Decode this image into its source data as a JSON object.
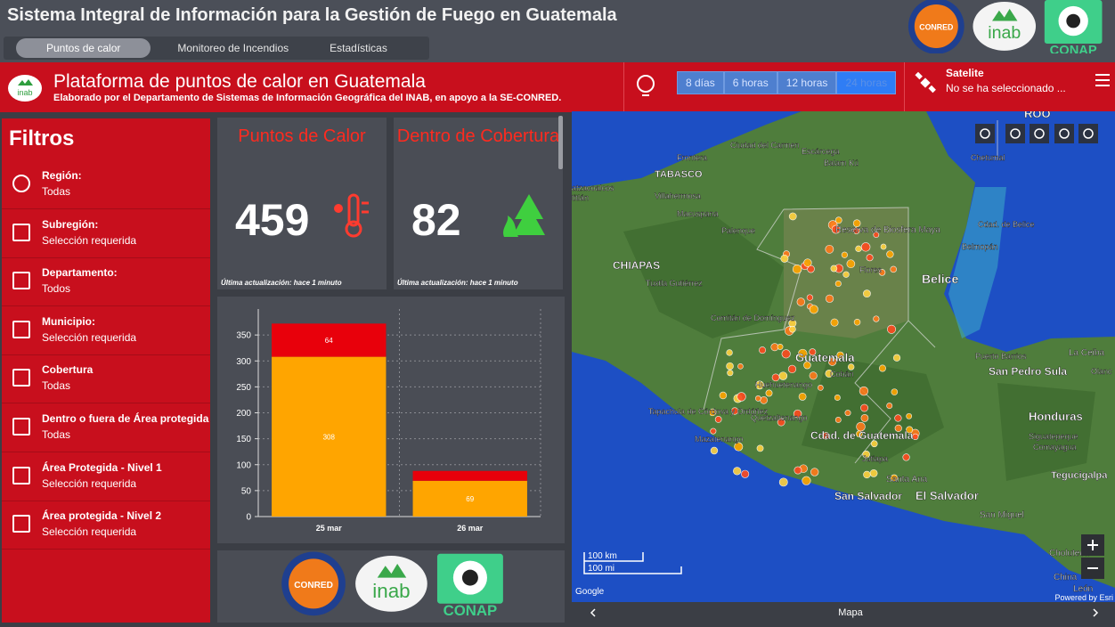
{
  "header": {
    "title": "Sistema Integral de Información para la Gestión de Fuego en Guatemala",
    "tabs": [
      "Puntos de calor",
      "Monitoreo de Incendios",
      "Estadísticas"
    ],
    "logos": [
      "CONRED",
      "inab",
      "CONAP"
    ]
  },
  "banner": {
    "logo": "inab",
    "title": "Plataforma de puntos de calor en Guatemala",
    "subtitle": "Elaborado por el Departamento de Sistemas de Información Geográfica del INAB, en apoyo a la SE-CONRED.",
    "time_buttons": [
      "8 días",
      "6 horas",
      "12 horas",
      "24 horas"
    ],
    "basemap_label": "Satelite",
    "basemap_value": "No se ha seleccionado ..."
  },
  "filters": {
    "title": "Filtros",
    "items": [
      {
        "label": "Región:",
        "value": "Todas"
      },
      {
        "label": "Subregión:",
        "value": "Selección requerida"
      },
      {
        "label": "Departamento:",
        "value": "Todos"
      },
      {
        "label": "Municipio:",
        "value": "Selección requerida"
      },
      {
        "label": "Cobertura",
        "value": "Todas"
      },
      {
        "label": "Dentro o fuera de Área protegida",
        "value": "Todas"
      },
      {
        "label": "Área Protegida - Nivel 1",
        "value": "Selección requerida"
      },
      {
        "label": "Área protegida - Nivel 2",
        "value": "Selección requerida"
      }
    ]
  },
  "cards": [
    {
      "title": "Puntos de Calor",
      "value": 459,
      "note": "Última actualización: hace 1 minuto"
    },
    {
      "title": "Dentro de Cobertura",
      "value": 82,
      "note": "Última actualización: hace 1 minuto"
    }
  ],
  "chart_data": {
    "type": "bar",
    "stacked": true,
    "categories": [
      "25 mar",
      "26 mar"
    ],
    "series": [
      {
        "color": "#ffa500",
        "values": [
          308,
          69
        ]
      },
      {
        "color": "#e8000b",
        "values": [
          64,
          19
        ],
        "value_labels": [
          "64",
          null
        ]
      }
    ],
    "ylim": [
      0,
      400
    ],
    "yticks": [
      0,
      50,
      100,
      150,
      200,
      250,
      300,
      350
    ],
    "grid": true
  },
  "footer_logos": [
    "CONRED",
    "inab",
    "CONAP"
  ],
  "map": {
    "labels": [
      "Frontera",
      "Ciudad del Carmen",
      "Escárcega",
      "Balam Kú",
      "Chetumal",
      "ROO",
      "TABASCO",
      "atzacoalcos",
      "titlán",
      "Villahermosa",
      "Macuspana",
      "Palenque",
      "Reserva de Biosfera Maya",
      "Cdad. de Belice",
      "Belmopán",
      "Flores",
      "Belice",
      "CHIAPAS",
      "Tuxtla Gutiérrez",
      "Comitán de Domínguez",
      "Guatemala",
      "Cobán",
      "Huehuetenango",
      "Quetzaltenango",
      "Tapachula de Córdova y Ordóñez",
      "Mazatenango",
      "Cdad. de Guatemala",
      "Jutiapa",
      "Puerto Barrios",
      "La Ceiba",
      "San Pedro Sula",
      "Olanc",
      "Honduras",
      "Siguatepeque",
      "Comayagua",
      "Santa Ana",
      "San Salvador",
      "El Salvador",
      "Tegucigalpa",
      "San Miguel",
      "Choluteca",
      "China",
      "León"
    ],
    "scale": [
      "100 km",
      "100 mi"
    ],
    "attribution_left": "Google",
    "attribution_right": "Powered by Esri",
    "footer": "Mapa"
  }
}
